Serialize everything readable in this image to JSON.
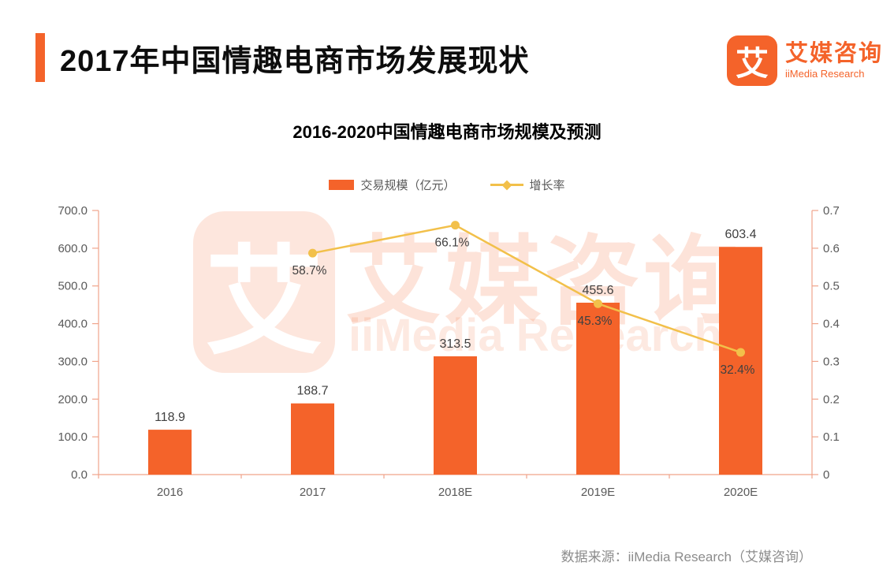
{
  "header": {
    "title": "2017年中国情趣电商市场发展现状",
    "logo_icon_char": "艾",
    "logo_brand_cn": "艾媒咨询",
    "logo_brand_en": "iiMedia Research"
  },
  "chart": {
    "title": "2016-2020中国情趣电商市场规模及预测",
    "legend_bar_label": "交易规模（亿元）",
    "legend_line_label": "增长率"
  },
  "watermark": {
    "icon_char": "艾",
    "brand_cn": "艾媒咨询",
    "brand_en": "iiMedia Research"
  },
  "footer": {
    "source": "数据来源：iiMedia Research（艾媒咨询）"
  },
  "colors": {
    "bar": "#F4632A",
    "line": "#F2C04A",
    "axis": "#F0A48B",
    "accent": "#F4632A",
    "tick_text": "#595959",
    "data_label": "#404040"
  },
  "chart_data": {
    "type": "bar+line combo",
    "title": "2016-2020中国情趣电商市场规模及预测",
    "categories": [
      "2016",
      "2017",
      "2018E",
      "2019E",
      "2020E"
    ],
    "series": [
      {
        "name": "交易规模（亿元）",
        "type": "bar",
        "axis": "left",
        "values": [
          118.9,
          188.7,
          313.5,
          455.6,
          603.4
        ],
        "labels": [
          "118.9",
          "188.7",
          "313.5",
          "455.6",
          "603.4"
        ],
        "color": "#F4632A"
      },
      {
        "name": "增长率",
        "type": "line",
        "axis": "right",
        "values": [
          null,
          0.587,
          0.661,
          0.453,
          0.324
        ],
        "labels": [
          null,
          "58.7%",
          "66.1%",
          "45.3%",
          "32.4%"
        ],
        "color": "#F2C04A"
      }
    ],
    "left_axis": {
      "min": 0,
      "max": 700,
      "step": 100,
      "tick_labels": [
        "0.0",
        "100.0",
        "200.0",
        "300.0",
        "400.0",
        "500.0",
        "600.0",
        "700.0"
      ]
    },
    "right_axis": {
      "min": 0,
      "max": 0.7,
      "step": 0.1,
      "tick_labels": [
        "0",
        "0.1",
        "0.2",
        "0.3",
        "0.4",
        "0.5",
        "0.6",
        "0.7"
      ]
    },
    "grid": false,
    "legend_position": "top"
  }
}
